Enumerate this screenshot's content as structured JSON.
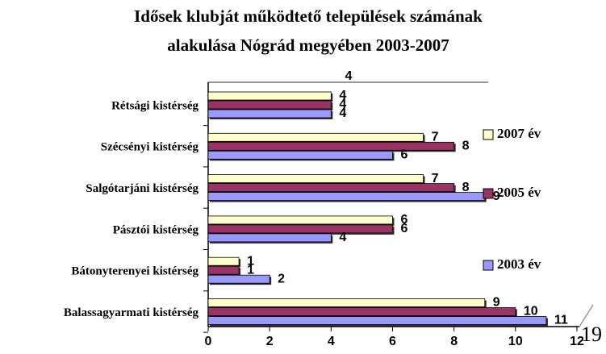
{
  "chart_data": {
    "type": "bar",
    "orientation": "horizontal",
    "title": [
      "Idősek klubját működtető települések számának",
      "alakulása Nógrád megyében 2003-2007"
    ],
    "categories": [
      "Rétsági kistérség",
      "Szécsényi kistérség",
      "Salgótarjáni kistérség",
      "Pásztói kistérség",
      "Bátonyterenyei kistérség",
      "Balassagyarmati kistérség"
    ],
    "series": [
      {
        "name": "2007 év",
        "color": "#ffffcc",
        "values": [
          4,
          7,
          7,
          6,
          1,
          9
        ]
      },
      {
        "name": "2005 év",
        "color": "#993366",
        "values": [
          4,
          8,
          8,
          6,
          1,
          10
        ]
      },
      {
        "name": "2003 év",
        "color": "#9999ff",
        "values": [
          4,
          6,
          9,
          4,
          2,
          11
        ]
      }
    ],
    "xlim": [
      0,
      12
    ],
    "xticks": [
      0,
      2,
      4,
      6,
      8,
      10,
      12
    ],
    "annotation": "4",
    "page_number": "19",
    "legend": "right"
  }
}
